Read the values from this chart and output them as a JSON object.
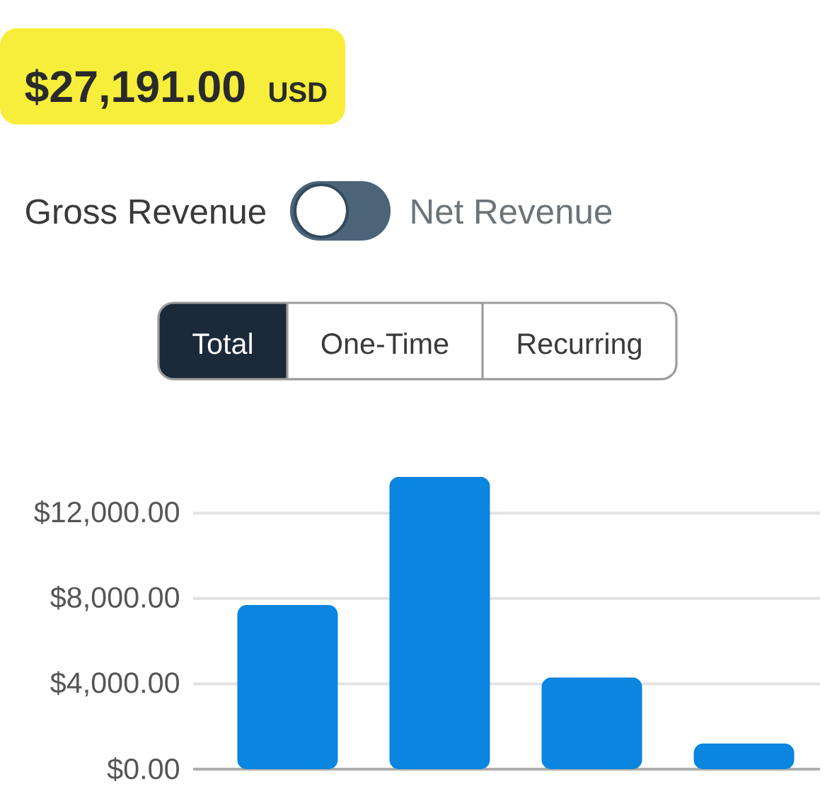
{
  "chart_data": {
    "type": "bar",
    "title": "$27,191.00",
    "subtitle": "USD",
    "annotations": [
      "Gross Revenue",
      "Net Revenue",
      "Total",
      "One-Time",
      "Recurring"
    ],
    "categories": [
      null,
      null,
      null,
      null
    ],
    "values": [
      7700,
      13700,
      4300,
      1200
    ],
    "color": "#0a85e0",
    "ylim": [
      0,
      13700
    ],
    "yticks": [
      {
        "value": 0,
        "label": "$0.00"
      },
      {
        "value": 4000,
        "label": "$4,000.00"
      },
      {
        "value": 8000,
        "label": "$8,000.00"
      },
      {
        "value": 12000,
        "label": "$12,000.00"
      }
    ],
    "grid": "y"
  }
}
